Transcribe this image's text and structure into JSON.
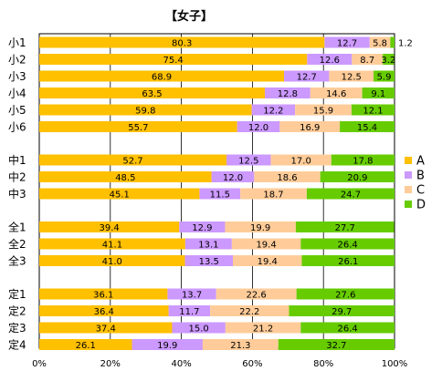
{
  "chart_data": {
    "type": "bar",
    "orientation": "horizontal",
    "stacked": true,
    "title": "【女子】",
    "groups": [
      [
        "小1",
        "小2",
        "小3",
        "小4",
        "小5",
        "小6"
      ],
      [
        "中1",
        "中2",
        "中3"
      ],
      [
        "全1",
        "全2",
        "全3"
      ],
      [
        "定1",
        "定2",
        "定3",
        "定4"
      ]
    ],
    "categories": [
      "小1",
      "小2",
      "小3",
      "小4",
      "小5",
      "小6",
      "中1",
      "中2",
      "中3",
      "全1",
      "全2",
      "全3",
      "定1",
      "定2",
      "定3",
      "定4"
    ],
    "series": [
      {
        "name": "A",
        "color": "#FFC000",
        "values": [
          80.3,
          75.4,
          68.9,
          63.5,
          59.8,
          55.7,
          52.7,
          48.5,
          45.1,
          39.4,
          41.1,
          41.0,
          36.1,
          36.4,
          37.4,
          26.1
        ]
      },
      {
        "name": "B",
        "color": "#CC99FF",
        "values": [
          12.7,
          12.6,
          12.7,
          12.8,
          12.2,
          12.0,
          12.5,
          12.0,
          11.5,
          12.9,
          13.1,
          13.5,
          13.7,
          11.7,
          15.0,
          19.9
        ]
      },
      {
        "name": "C",
        "color": "#FFCC99",
        "values": [
          5.8,
          8.7,
          12.5,
          14.6,
          15.9,
          16.9,
          17.0,
          18.6,
          18.7,
          19.9,
          19.4,
          19.4,
          22.6,
          22.2,
          21.2,
          21.3
        ]
      },
      {
        "name": "D",
        "color": "#66CC00",
        "values": [
          1.2,
          3.2,
          5.9,
          9.1,
          12.1,
          15.4,
          17.8,
          20.9,
          24.7,
          27.7,
          26.4,
          26.1,
          27.6,
          29.7,
          26.4,
          32.7
        ]
      }
    ],
    "xlim": [
      0,
      100
    ],
    "xticks": [
      "0%",
      "20%",
      "40%",
      "60%",
      "80%",
      "100%"
    ],
    "grid": true,
    "legend": "right"
  }
}
